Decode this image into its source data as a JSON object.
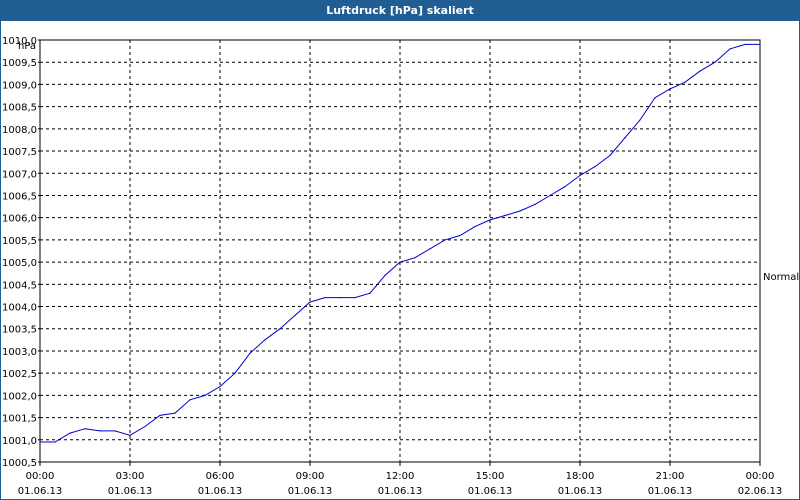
{
  "window": {
    "title": "Luftdruck [hPa] skaliert"
  },
  "chart_data": {
    "type": "line",
    "title": "Luftdruck [hPa] skaliert",
    "ylabel": "hPa",
    "reference_label": "Normal",
    "ylim": [
      1000.5,
      1010.0
    ],
    "yticks": [
      "1000,5",
      "1001,0",
      "1001,5",
      "1002,0",
      "1002,5",
      "1003,0",
      "1003,5",
      "1004,0",
      "1004,5",
      "1005,0",
      "1005,5",
      "1006,0",
      "1006,5",
      "1007,0",
      "1007,5",
      "1008,0",
      "1008,5",
      "1009,0",
      "1009,5",
      "1010,0"
    ],
    "xticks": [
      {
        "time": "00:00",
        "date": "01.06.13"
      },
      {
        "time": "03:00",
        "date": "01.06.13"
      },
      {
        "time": "06:00",
        "date": "01.06.13"
      },
      {
        "time": "09:00",
        "date": "01.06.13"
      },
      {
        "time": "12:00",
        "date": "01.06.13"
      },
      {
        "time": "15:00",
        "date": "01.06.13"
      },
      {
        "time": "18:00",
        "date": "01.06.13"
      },
      {
        "time": "21:00",
        "date": "01.06.13"
      },
      {
        "time": "00:00",
        "date": "02.06.13"
      }
    ],
    "grid": true,
    "line_color": "#0000cc",
    "series": [
      {
        "x": [
          "01.06.13 00:00",
          "01.06.13 00:30",
          "01.06.13 01:00",
          "01.06.13 01:30",
          "01.06.13 02:00",
          "01.06.13 02:30",
          "01.06.13 03:00",
          "01.06.13 03:30",
          "01.06.13 04:00",
          "01.06.13 04:30",
          "01.06.13 05:00",
          "01.06.13 05:30",
          "01.06.13 06:00",
          "01.06.13 06:30",
          "01.06.13 07:00",
          "01.06.13 07:30",
          "01.06.13 08:00",
          "01.06.13 08:30",
          "01.06.13 09:00",
          "01.06.13 09:30",
          "01.06.13 10:00",
          "01.06.13 10:30",
          "01.06.13 11:00",
          "01.06.13 11:30",
          "01.06.13 12:00",
          "01.06.13 12:30",
          "01.06.13 13:00",
          "01.06.13 13:30",
          "01.06.13 14:00",
          "01.06.13 14:30",
          "01.06.13 15:00",
          "01.06.13 15:30",
          "01.06.13 16:00",
          "01.06.13 16:30",
          "01.06.13 17:00",
          "01.06.13 17:30",
          "01.06.13 18:00",
          "01.06.13 18:30",
          "01.06.13 19:00",
          "01.06.13 19:30",
          "01.06.13 20:00",
          "01.06.13 20:30",
          "01.06.13 21:00",
          "01.06.13 21:30",
          "01.06.13 22:00",
          "01.06.13 22:30",
          "01.06.13 23:00",
          "01.06.13 23:30",
          "02.06.13 00:00"
        ],
        "values": [
          1000.95,
          1000.95,
          1001.15,
          1001.25,
          1001.2,
          1001.2,
          1001.1,
          1001.3,
          1001.55,
          1001.6,
          1001.9,
          1002.0,
          1002.2,
          1002.5,
          1002.95,
          1003.25,
          1003.5,
          1003.8,
          1004.1,
          1004.2,
          1004.2,
          1004.2,
          1004.3,
          1004.7,
          1005.0,
          1005.1,
          1005.3,
          1005.5,
          1005.6,
          1005.8,
          1005.95,
          1006.05,
          1006.15,
          1006.3,
          1006.5,
          1006.7,
          1006.95,
          1007.15,
          1007.4,
          1007.8,
          1008.2,
          1008.7,
          1008.9,
          1009.05,
          1009.3,
          1009.5,
          1009.8,
          1009.9,
          1009.9
        ]
      }
    ]
  }
}
